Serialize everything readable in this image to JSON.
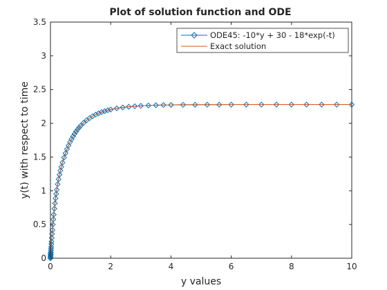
{
  "chart_data": {
    "type": "line",
    "title": "Plot of solution function and ODE",
    "xlabel": "y values",
    "ylabel": "y(t) with respect to time",
    "xlim": [
      0,
      10
    ],
    "ylim": [
      0,
      3.5
    ],
    "xticks": [
      0,
      2,
      4,
      6,
      8,
      10
    ],
    "yticks": [
      0,
      0.5,
      1,
      1.5,
      2,
      2.5,
      3,
      3.5
    ],
    "grid": false,
    "legend_position": "top-right",
    "series": [
      {
        "name": "ODE45: -10*y + 30 - 18*exp(-t)",
        "color": "#0072bd",
        "marker": "diamond",
        "x": [
          0,
          0.002,
          0.004,
          0.006,
          0.008,
          0.01,
          0.012,
          0.016,
          0.02,
          0.024,
          0.03,
          0.036,
          0.045,
          0.055,
          0.065,
          0.08,
          0.095,
          0.11,
          0.13,
          0.15,
          0.17,
          0.19,
          0.21,
          0.24,
          0.27,
          0.3,
          0.33,
          0.36,
          0.4,
          0.45,
          0.5,
          0.55,
          0.6,
          0.65,
          0.7,
          0.75,
          0.8,
          0.85,
          0.9,
          0.95,
          1.0,
          1.1,
          1.2,
          1.3,
          1.4,
          1.5,
          1.6,
          1.7,
          1.8,
          1.9,
          2.0,
          2.2,
          2.4,
          2.6,
          2.8,
          3.0,
          3.25,
          3.5,
          3.75,
          4.0,
          4.4,
          4.8,
          5.2,
          5.6,
          6.0,
          6.5,
          7.0,
          7.5,
          8.0,
          8.5,
          9.0,
          9.5,
          10.0
        ],
        "y": [
          0,
          0.014,
          0.029,
          0.044,
          0.058,
          0.072,
          0.086,
          0.114,
          0.141,
          0.168,
          0.208,
          0.246,
          0.301,
          0.361,
          0.418,
          0.5,
          0.576,
          0.647,
          0.734,
          0.814,
          0.887,
          0.953,
          1.014,
          1.097,
          1.171,
          1.238,
          1.298,
          1.353,
          1.418,
          1.492,
          1.557,
          1.617,
          1.671,
          1.72,
          1.765,
          1.806,
          1.843,
          1.877,
          1.908,
          1.936,
          1.962,
          2.007,
          2.045,
          2.077,
          2.105,
          2.129,
          2.148,
          2.166,
          2.18,
          2.193,
          2.204,
          2.222,
          2.235,
          2.245,
          2.253,
          2.259,
          2.264,
          2.268,
          2.271,
          2.272,
          2.274,
          2.275,
          2.276,
          2.276,
          2.277,
          2.277,
          2.277,
          2.277,
          2.277,
          2.277,
          2.277,
          2.277,
          2.277
        ]
      },
      {
        "name": "Exact solution",
        "color": "#d95319",
        "marker": "none",
        "x": [
          0,
          0.002,
          0.004,
          0.006,
          0.008,
          0.01,
          0.012,
          0.016,
          0.02,
          0.024,
          0.03,
          0.036,
          0.045,
          0.055,
          0.065,
          0.08,
          0.095,
          0.11,
          0.13,
          0.15,
          0.17,
          0.19,
          0.21,
          0.24,
          0.27,
          0.3,
          0.33,
          0.36,
          0.4,
          0.45,
          0.5,
          0.55,
          0.6,
          0.65,
          0.7,
          0.75,
          0.8,
          0.85,
          0.9,
          0.95,
          1.0,
          1.1,
          1.2,
          1.3,
          1.4,
          1.5,
          1.6,
          1.7,
          1.8,
          1.9,
          2.0,
          2.2,
          2.4,
          2.6,
          2.8,
          3.0,
          3.25,
          3.5,
          3.75,
          4.0,
          4.4,
          4.8,
          5.2,
          5.6,
          6.0,
          6.5,
          7.0,
          7.5,
          8.0,
          8.5,
          9.0,
          9.5,
          10.0
        ],
        "y": [
          0,
          0.014,
          0.029,
          0.044,
          0.058,
          0.072,
          0.086,
          0.114,
          0.141,
          0.168,
          0.208,
          0.246,
          0.301,
          0.361,
          0.418,
          0.5,
          0.576,
          0.647,
          0.734,
          0.814,
          0.887,
          0.953,
          1.014,
          1.097,
          1.171,
          1.238,
          1.298,
          1.353,
          1.418,
          1.492,
          1.557,
          1.617,
          1.671,
          1.72,
          1.765,
          1.806,
          1.843,
          1.877,
          1.908,
          1.936,
          1.962,
          2.007,
          2.045,
          2.077,
          2.105,
          2.129,
          2.148,
          2.166,
          2.18,
          2.193,
          2.204,
          2.222,
          2.235,
          2.245,
          2.253,
          2.259,
          2.264,
          2.268,
          2.271,
          2.272,
          2.274,
          2.275,
          2.276,
          2.276,
          2.277,
          2.277,
          2.277,
          2.277,
          2.277,
          2.277,
          2.277,
          2.277,
          2.277
        ]
      }
    ]
  }
}
